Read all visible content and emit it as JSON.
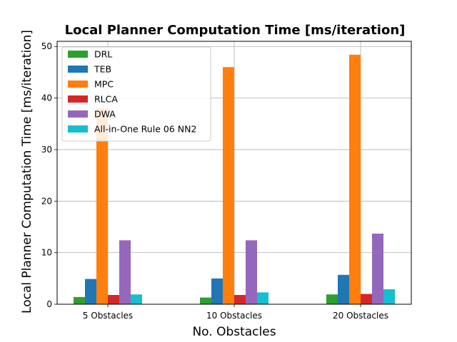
{
  "chart_data": {
    "type": "bar",
    "title": "Local Planner Computation Time [ms/iteration]",
    "xlabel": "No. Obstacles",
    "ylabel": "Local Planner Computation Time [ms/iteration]",
    "categories": [
      "5 Obstacles",
      "10 Obstacles",
      "20 Obstacles"
    ],
    "ylim": [
      0,
      51
    ],
    "yticks": [
      0,
      10,
      20,
      30,
      40,
      50
    ],
    "grid": true,
    "legend_position": "top-left",
    "series": [
      {
        "name": "DRL",
        "color": "#2ca02c",
        "values": [
          1.4,
          1.3,
          1.9
        ]
      },
      {
        "name": "TEB",
        "color": "#1f77b4",
        "values": [
          4.9,
          5.0,
          5.7
        ]
      },
      {
        "name": "MPC",
        "color": "#ff7f0e",
        "values": [
          38.0,
          46.0,
          48.4
        ]
      },
      {
        "name": "RLCA",
        "color": "#d62728",
        "values": [
          1.8,
          1.8,
          2.0
        ]
      },
      {
        "name": "DWA",
        "color": "#9467bd",
        "values": [
          12.4,
          12.4,
          13.7
        ]
      },
      {
        "name": "All-in-One Rule 06 NN2",
        "color": "#17becf",
        "values": [
          1.9,
          2.3,
          2.9
        ]
      }
    ]
  }
}
